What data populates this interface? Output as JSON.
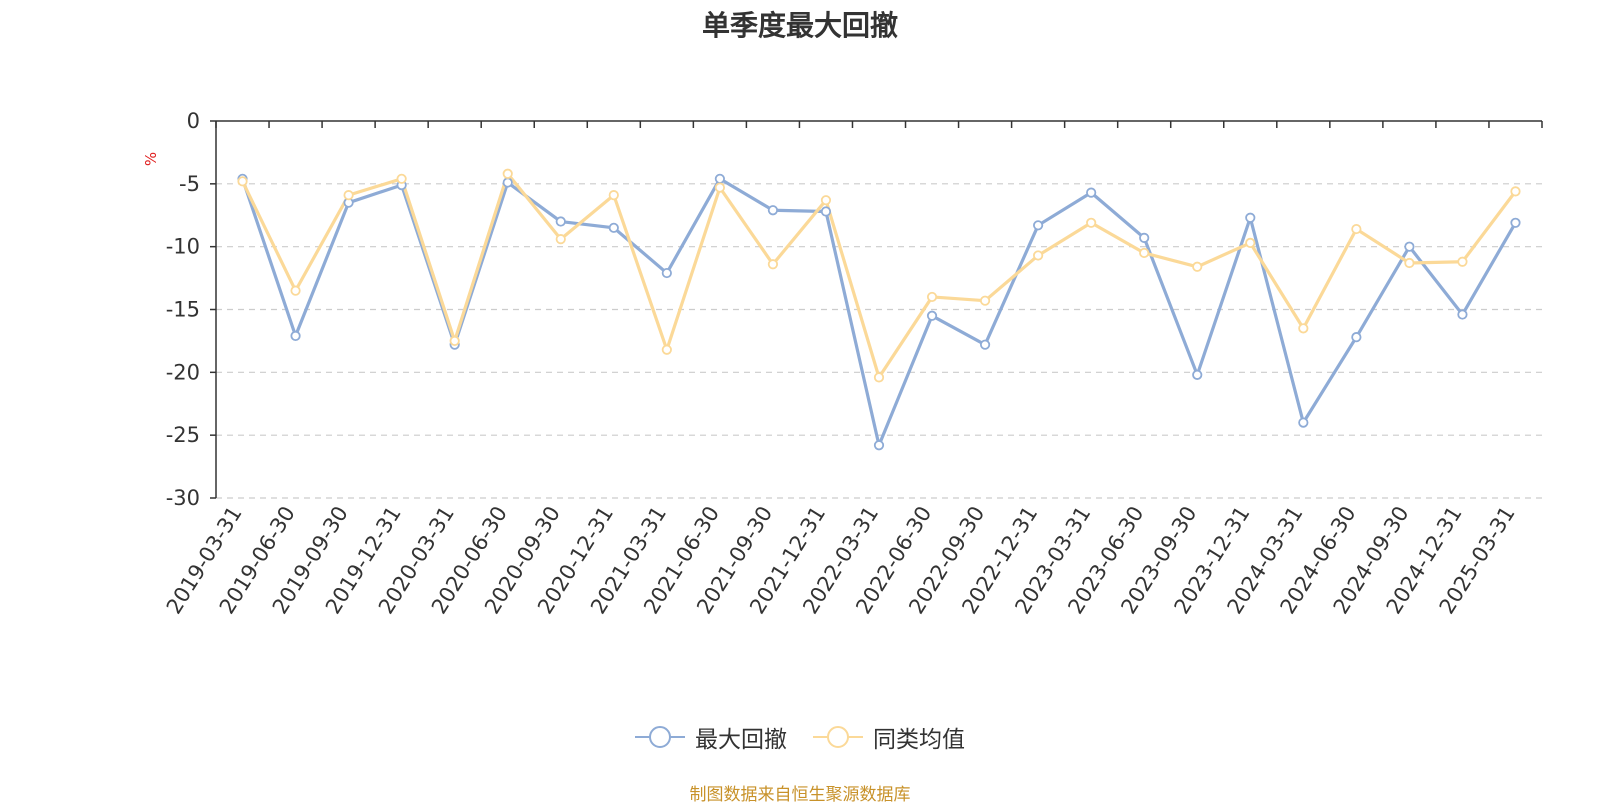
{
  "chart_data": {
    "type": "line",
    "title": "单季度最大回撤",
    "ylabel": "%",
    "ylim": [
      -30,
      0
    ],
    "yticks": [
      0,
      -5,
      -10,
      -15,
      -20,
      -25,
      -30
    ],
    "grid": true,
    "legend_position": "bottom-center",
    "categories": [
      "2019-03-31",
      "2019-06-30",
      "2019-09-30",
      "2019-12-31",
      "2020-03-31",
      "2020-06-30",
      "2020-09-30",
      "2020-12-31",
      "2021-03-31",
      "2021-06-30",
      "2021-09-30",
      "2021-12-31",
      "2022-03-31",
      "2022-06-30",
      "2022-09-30",
      "2022-12-31",
      "2023-03-31",
      "2023-06-30",
      "2023-09-30",
      "2023-12-31",
      "2024-03-31",
      "2024-06-30",
      "2024-09-30",
      "2024-12-31",
      "2025-03-31"
    ],
    "series": [
      {
        "name": "最大回撤",
        "color": "#8eabd6",
        "values": [
          -4.6,
          -17.1,
          -6.5,
          -5.1,
          -17.8,
          -4.9,
          -8.0,
          -8.5,
          -12.1,
          -4.6,
          -7.1,
          -7.2,
          -25.8,
          -15.5,
          -17.8,
          -8.3,
          -5.7,
          -9.3,
          -20.2,
          -7.7,
          -24.0,
          -17.2,
          -10.0,
          -15.4,
          -8.1
        ]
      },
      {
        "name": "同类均值",
        "color": "#fbd998",
        "values": [
          -4.8,
          -13.5,
          -5.9,
          -4.6,
          -17.5,
          -4.2,
          -9.4,
          -5.9,
          -18.2,
          -5.3,
          -11.4,
          -6.3,
          -20.4,
          -14.0,
          -14.3,
          -10.7,
          -8.1,
          -10.5,
          -11.6,
          -9.7,
          -16.5,
          -8.6,
          -11.3,
          -11.2,
          -5.6
        ]
      }
    ]
  },
  "source_note": "制图数据来自恒生聚源数据库"
}
